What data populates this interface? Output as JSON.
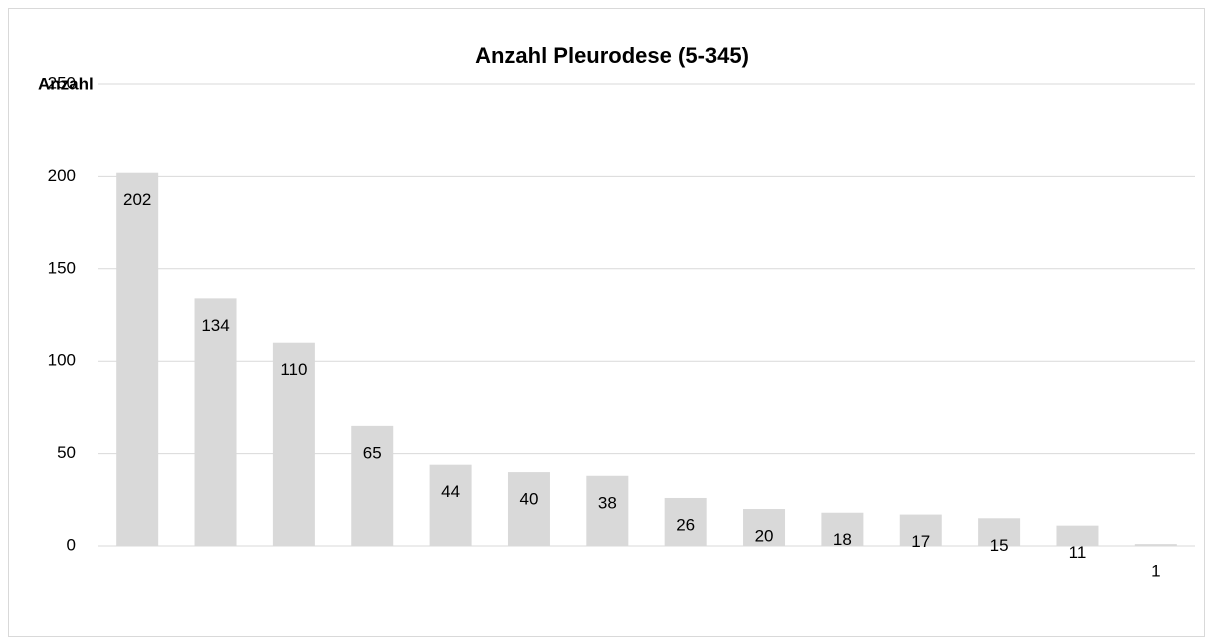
{
  "chart_data": {
    "type": "bar",
    "title": "Anzahl Pleurodese (5-345)",
    "y_label": "Anzahl",
    "categories": [
      null,
      null,
      null,
      null,
      null,
      null,
      null,
      null,
      null,
      null,
      null,
      null,
      null,
      null
    ],
    "values": [
      202,
      134,
      110,
      65,
      44,
      40,
      38,
      26,
      20,
      18,
      17,
      15,
      11,
      1
    ],
    "color": "#d9d9d9",
    "ylim": [
      0,
      250
    ],
    "yticks": [
      0,
      50,
      100,
      150,
      200,
      250
    ],
    "grid": true
  }
}
